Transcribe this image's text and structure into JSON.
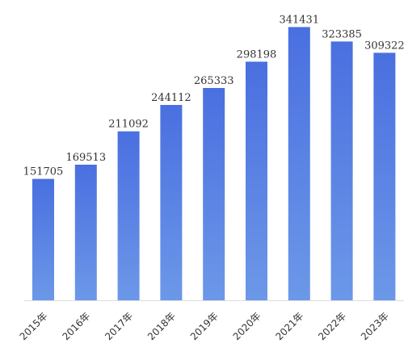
{
  "chart_data": {
    "type": "bar",
    "categories": [
      "2015年",
      "2016年",
      "2017年",
      "2018年",
      "2019年",
      "2020年",
      "2021年",
      "2022年",
      "2023年"
    ],
    "values": [
      151705,
      169513,
      211092,
      244112,
      265333,
      298198,
      341431,
      323385,
      309322
    ],
    "data_labels": [
      "151705",
      "169513",
      "211092",
      "244112",
      "265333",
      "298198",
      "341431",
      "323385",
      "309322"
    ],
    "title": "",
    "xlabel": "",
    "ylabel": "",
    "ylim": [
      0,
      345000
    ],
    "grid": false,
    "legend": "none",
    "colors": {
      "bar_top": "#4A6FE0",
      "bar_bottom": "#6C98E8",
      "text": "#333333"
    }
  }
}
